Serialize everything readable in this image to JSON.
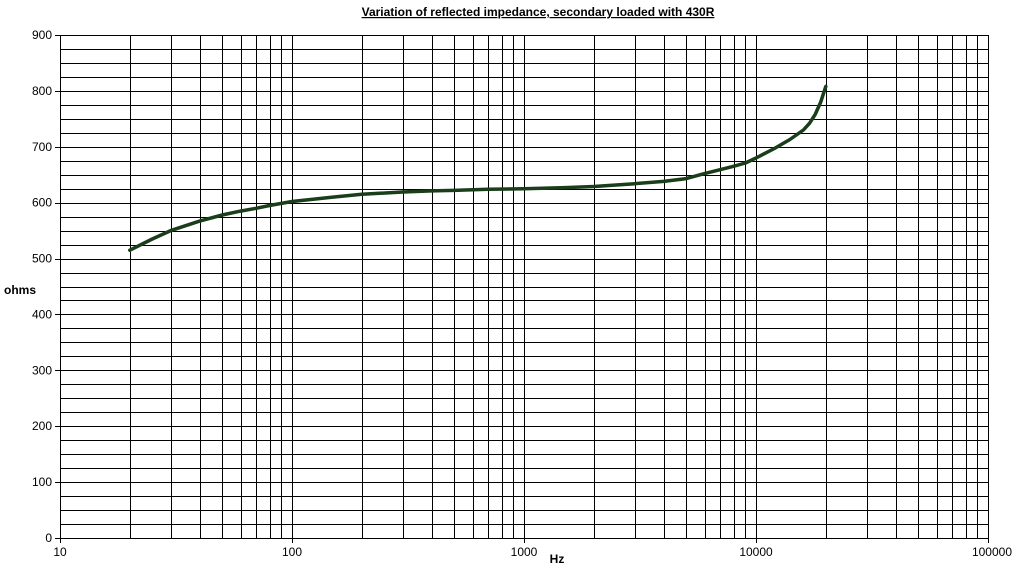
{
  "chart_data": {
    "type": "line",
    "title": "Variation of reflected impedance, secondary loaded with 430R",
    "xlabel": "Hz",
    "ylabel": "ohms",
    "x_scale": "log",
    "xlim": [
      10,
      100000
    ],
    "ylim": [
      0,
      900
    ],
    "x_ticks": [
      10,
      100,
      1000,
      10000,
      100000
    ],
    "x_tick_labels": [
      "10",
      "100",
      "1000",
      "10000",
      "100000"
    ],
    "y_ticks": [
      0,
      100,
      200,
      300,
      400,
      500,
      600,
      700,
      800,
      900
    ],
    "y_tick_labels": [
      "0",
      "100",
      "200",
      "300",
      "400",
      "500",
      "600",
      "700",
      "800",
      "900"
    ],
    "y_minor_step": 25,
    "grid": true,
    "legend": "none",
    "line_color": "#1a3d1a",
    "series": [
      {
        "x": [
          20,
          25,
          30,
          40,
          50,
          60,
          70,
          80,
          100,
          150,
          200,
          300,
          400,
          500,
          700,
          1000,
          1500,
          2000,
          3000,
          4000,
          5000,
          6000,
          7000,
          8000,
          9000,
          10000,
          12000,
          14000,
          16000,
          17000,
          18000,
          19000,
          20000
        ],
        "y": [
          515,
          535,
          550,
          567,
          578,
          585,
          590,
          595,
          602,
          610,
          615,
          619,
          621,
          622,
          624,
          625,
          627,
          629,
          634,
          638,
          643,
          652,
          659,
          665,
          671,
          680,
          697,
          713,
          730,
          742,
          758,
          780,
          808
        ]
      }
    ]
  }
}
